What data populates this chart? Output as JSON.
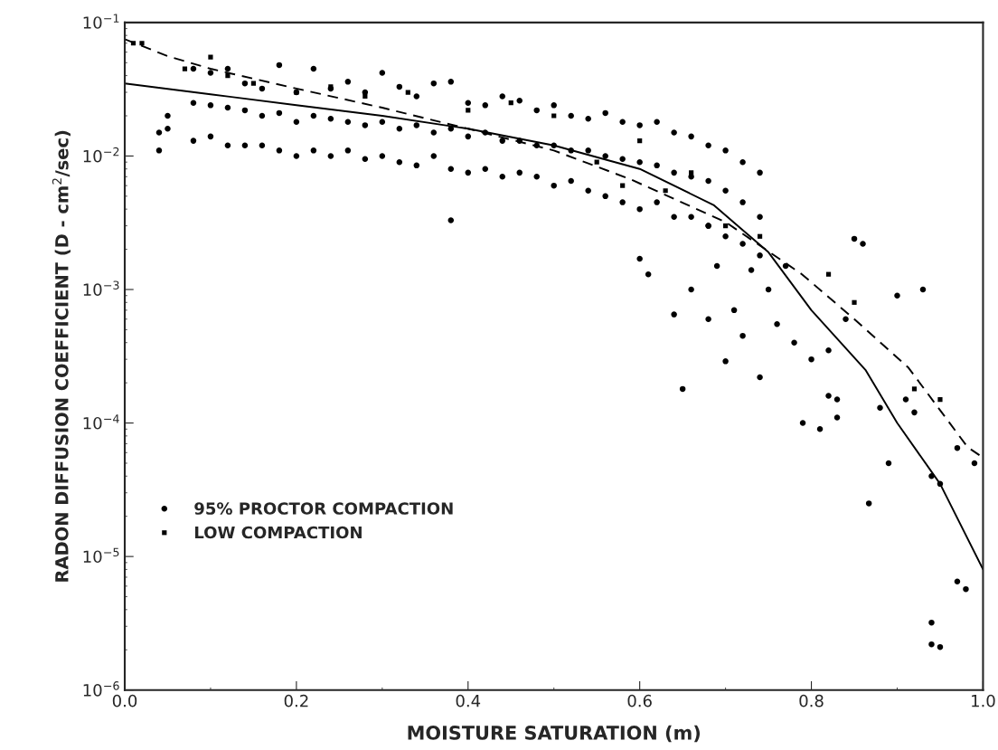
{
  "chart_data": {
    "type": "scatter",
    "xlabel": "MOISTURE SATURATION (m)",
    "ylabel": "RADON DIFFUSION COEFFICIENT (D - cm$^{2}$/sec)",
    "xlim": [
      0.0,
      1.0
    ],
    "xticks": [
      {
        "value": 0.0,
        "label": "0.0"
      },
      0.2,
      0.4,
      0.6,
      0.8,
      {
        "value": 1.0,
        "label": "1.0"
      }
    ],
    "log": "y",
    "ylim": [
      1e-06,
      0.1
    ],
    "yticks": [
      {
        "value": 1e-06,
        "label": "10$^{−6}$"
      },
      {
        "value": 1e-05,
        "label": "10$^{−5}$"
      },
      {
        "value": 0.0001,
        "label": "10$^{−4}$"
      },
      {
        "value": 0.001,
        "label": "10$^{−3}$"
      },
      {
        "value": 0.01,
        "label": "10$^{−2}$"
      },
      {
        "value": 0.1,
        "label": "10$^{−1}$"
      }
    ],
    "grid": false,
    "legend": "bottom left",
    "series": [
      {
        "name": "95% PROCTOR COMPACTION",
        "marker": "circle",
        "color": "#000000",
        "x": [
          0.08,
          0.08,
          0.08,
          0.1,
          0.1,
          0.1,
          0.12,
          0.12,
          0.12,
          0.14,
          0.14,
          0.14,
          0.16,
          0.16,
          0.16,
          0.18,
          0.18,
          0.18,
          0.2,
          0.2,
          0.2,
          0.22,
          0.22,
          0.22,
          0.24,
          0.24,
          0.24,
          0.26,
          0.26,
          0.26,
          0.28,
          0.28,
          0.28,
          0.3,
          0.3,
          0.3,
          0.32,
          0.32,
          0.32,
          0.34,
          0.34,
          0.34,
          0.36,
          0.36,
          0.36,
          0.38,
          0.38,
          0.38,
          0.4,
          0.4,
          0.4,
          0.42,
          0.42,
          0.42,
          0.44,
          0.44,
          0.44,
          0.46,
          0.46,
          0.46,
          0.48,
          0.48,
          0.48,
          0.5,
          0.5,
          0.5,
          0.52,
          0.52,
          0.52,
          0.54,
          0.54,
          0.54,
          0.56,
          0.56,
          0.56,
          0.58,
          0.58,
          0.58,
          0.6,
          0.6,
          0.6,
          0.62,
          0.62,
          0.62,
          0.64,
          0.64,
          0.64,
          0.66,
          0.66,
          0.66,
          0.68,
          0.68,
          0.68,
          0.7,
          0.7,
          0.7,
          0.72,
          0.72,
          0.72,
          0.74,
          0.74,
          0.74,
          0.04,
          0.04,
          0.05,
          0.05,
          0.38,
          0.6,
          0.61,
          0.64,
          0.65,
          0.66,
          0.68,
          0.7,
          0.71,
          0.72,
          0.73,
          0.74,
          0.75,
          0.76,
          0.77,
          0.78,
          0.79,
          0.8,
          0.81,
          0.82,
          0.83,
          0.84,
          0.85,
          0.86,
          0.867,
          0.88,
          0.89,
          0.9,
          0.91,
          0.92,
          0.93,
          0.94,
          0.95,
          0.97,
          0.97,
          0.98,
          0.94,
          0.94,
          0.95,
          0.99,
          0.83,
          0.82,
          0.68,
          0.69
        ],
        "values": [
          0.045,
          0.025,
          0.013,
          0.042,
          0.024,
          0.014,
          0.045,
          0.023,
          0.012,
          0.035,
          0.022,
          0.012,
          0.032,
          0.02,
          0.012,
          0.048,
          0.021,
          0.011,
          0.03,
          0.018,
          0.01,
          0.045,
          0.02,
          0.011,
          0.032,
          0.019,
          0.01,
          0.036,
          0.018,
          0.011,
          0.03,
          0.017,
          0.0095,
          0.042,
          0.018,
          0.01,
          0.033,
          0.016,
          0.009,
          0.028,
          0.017,
          0.0085,
          0.035,
          0.015,
          0.01,
          0.036,
          0.016,
          0.008,
          0.025,
          0.014,
          0.0075,
          0.024,
          0.015,
          0.008,
          0.028,
          0.013,
          0.007,
          0.026,
          0.013,
          0.0075,
          0.022,
          0.012,
          0.007,
          0.024,
          0.012,
          0.006,
          0.02,
          0.011,
          0.0065,
          0.019,
          0.011,
          0.0055,
          0.021,
          0.01,
          0.005,
          0.018,
          0.0095,
          0.0045,
          0.017,
          0.009,
          0.004,
          0.018,
          0.0085,
          0.0045,
          0.015,
          0.0075,
          0.0035,
          0.014,
          0.007,
          0.0035,
          0.012,
          0.0065,
          0.003,
          0.011,
          0.0055,
          0.0025,
          0.009,
          0.0045,
          0.0022,
          0.0075,
          0.0035,
          0.0018,
          0.011,
          0.015,
          0.016,
          0.02,
          0.0033,
          0.0017,
          0.0013,
          0.00065,
          0.00018,
          0.001,
          0.0006,
          0.00029,
          0.0007,
          0.00045,
          0.0014,
          0.00022,
          0.001,
          0.00055,
          0.0015,
          0.0004,
          0.0001,
          0.0003,
          9e-05,
          0.00016,
          0.00011,
          0.0006,
          0.0024,
          0.0022,
          2.5e-05,
          0.00013,
          5e-05,
          0.0009,
          0.00015,
          0.00012,
          0.001,
          4e-05,
          3.5e-05,
          6.5e-06,
          6.5e-05,
          5.7e-06,
          3.2e-06,
          2.2e-06,
          2.1e-06,
          5e-05,
          0.00015,
          0.00035,
          0.003,
          0.0015
        ]
      },
      {
        "name": "LOW COMPACTION",
        "marker": "square",
        "color": "#000000",
        "x": [
          0.01,
          0.02,
          0.07,
          0.1,
          0.12,
          0.15,
          0.2,
          0.24,
          0.28,
          0.33,
          0.4,
          0.45,
          0.5,
          0.55,
          0.58,
          0.6,
          0.63,
          0.66,
          0.7,
          0.74,
          0.82,
          0.85,
          0.92,
          0.95
        ],
        "values": [
          0.07,
          0.07,
          0.045,
          0.055,
          0.04,
          0.035,
          0.03,
          0.033,
          0.028,
          0.03,
          0.022,
          0.025,
          0.02,
          0.009,
          0.006,
          0.013,
          0.0055,
          0.0075,
          0.003,
          0.0025,
          0.0013,
          0.0008,
          0.00018,
          0.00015
        ]
      },
      {
        "type": "line",
        "line_style": "solid",
        "color": "#000000",
        "x": [
          0.0,
          0.1,
          0.2,
          0.3,
          0.4,
          0.5,
          0.6,
          0.686,
          0.75,
          0.8,
          0.863,
          0.9,
          0.95,
          1.0
        ],
        "values": [
          0.035,
          0.029,
          0.024,
          0.02,
          0.016,
          0.012,
          0.008,
          0.0043,
          0.0019,
          0.0007,
          0.00025,
          0.0001,
          3.5e-05,
          8e-06
        ]
      },
      {
        "type": "line",
        "line_style": "dashed",
        "color": "#000000",
        "x": [
          0.0,
          0.05,
          0.1,
          0.2,
          0.3,
          0.4,
          0.5,
          0.589,
          0.7,
          0.789,
          0.85,
          0.913,
          0.982,
          1.0
        ],
        "values": [
          0.075,
          0.056,
          0.045,
          0.032,
          0.023,
          0.016,
          0.011,
          0.0067,
          0.0032,
          0.0013,
          0.0006,
          0.00026,
          6.6e-05,
          5.5e-05
        ]
      }
    ]
  }
}
